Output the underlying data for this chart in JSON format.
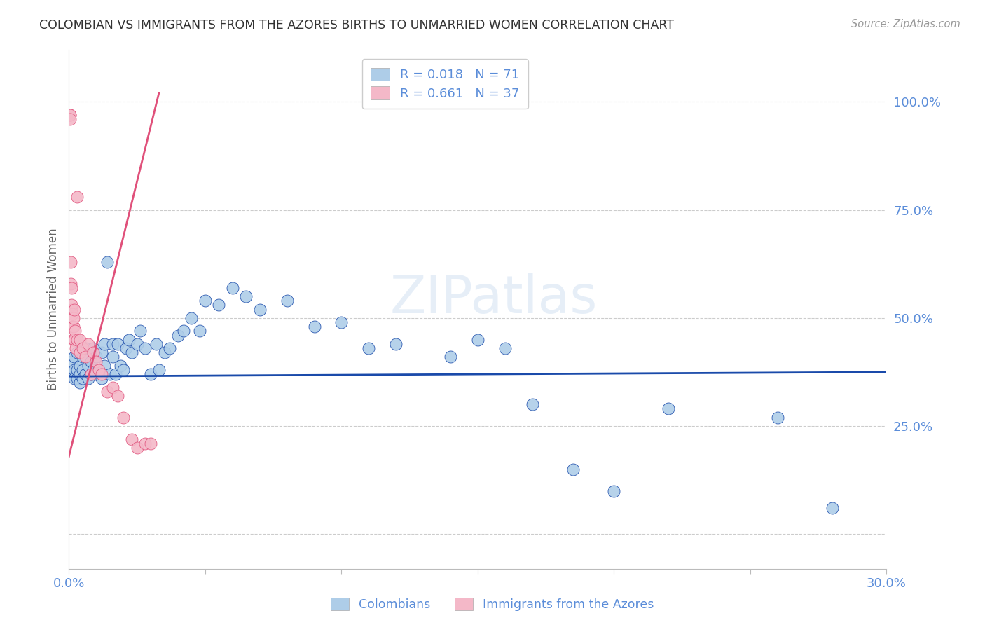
{
  "title": "COLOMBIAN VS IMMIGRANTS FROM THE AZORES BIRTHS TO UNMARRIED WOMEN CORRELATION CHART",
  "source": "Source: ZipAtlas.com",
  "ylabel": "Births to Unmarried Women",
  "xlim": [
    0.0,
    0.3
  ],
  "ylim": [
    -0.08,
    1.12
  ],
  "blue_color": "#aecde8",
  "pink_color": "#f4b8c8",
  "blue_line_color": "#1a4aaa",
  "pink_line_color": "#e0507a",
  "axis_label_color": "#5b8dd9",
  "colombians_x": [
    0.001,
    0.001,
    0.002,
    0.002,
    0.002,
    0.003,
    0.003,
    0.003,
    0.004,
    0.004,
    0.004,
    0.005,
    0.005,
    0.005,
    0.006,
    0.006,
    0.007,
    0.007,
    0.008,
    0.008,
    0.009,
    0.009,
    0.01,
    0.01,
    0.011,
    0.012,
    0.012,
    0.013,
    0.013,
    0.014,
    0.015,
    0.016,
    0.016,
    0.017,
    0.018,
    0.019,
    0.02,
    0.021,
    0.022,
    0.023,
    0.025,
    0.026,
    0.028,
    0.03,
    0.032,
    0.033,
    0.035,
    0.037,
    0.04,
    0.042,
    0.045,
    0.048,
    0.05,
    0.055,
    0.06,
    0.065,
    0.07,
    0.08,
    0.09,
    0.1,
    0.11,
    0.12,
    0.14,
    0.15,
    0.16,
    0.17,
    0.185,
    0.2,
    0.22,
    0.26,
    0.28
  ],
  "colombians_y": [
    0.37,
    0.4,
    0.38,
    0.36,
    0.41,
    0.36,
    0.38,
    0.42,
    0.35,
    0.37,
    0.39,
    0.38,
    0.41,
    0.36,
    0.37,
    0.43,
    0.39,
    0.36,
    0.4,
    0.37,
    0.38,
    0.43,
    0.37,
    0.41,
    0.38,
    0.42,
    0.36,
    0.39,
    0.44,
    0.63,
    0.37,
    0.44,
    0.41,
    0.37,
    0.44,
    0.39,
    0.38,
    0.43,
    0.45,
    0.42,
    0.44,
    0.47,
    0.43,
    0.37,
    0.44,
    0.38,
    0.42,
    0.43,
    0.46,
    0.47,
    0.5,
    0.47,
    0.54,
    0.53,
    0.57,
    0.55,
    0.52,
    0.54,
    0.48,
    0.49,
    0.43,
    0.44,
    0.41,
    0.45,
    0.43,
    0.3,
    0.15,
    0.1,
    0.29,
    0.27,
    0.06
  ],
  "azores_x": [
    0.0003,
    0.0004,
    0.0005,
    0.0006,
    0.0007,
    0.0008,
    0.001,
    0.001,
    0.0012,
    0.0013,
    0.0015,
    0.0016,
    0.0018,
    0.002,
    0.002,
    0.0022,
    0.0025,
    0.003,
    0.003,
    0.004,
    0.004,
    0.005,
    0.006,
    0.007,
    0.008,
    0.009,
    0.01,
    0.011,
    0.012,
    0.014,
    0.016,
    0.018,
    0.02,
    0.023,
    0.025,
    0.028,
    0.03
  ],
  "azores_y": [
    0.97,
    0.97,
    0.96,
    0.63,
    0.58,
    0.52,
    0.53,
    0.57,
    0.48,
    0.51,
    0.45,
    0.48,
    0.5,
    0.52,
    0.45,
    0.47,
    0.43,
    0.45,
    0.78,
    0.45,
    0.42,
    0.43,
    0.41,
    0.44,
    0.37,
    0.42,
    0.4,
    0.38,
    0.37,
    0.33,
    0.34,
    0.32,
    0.27,
    0.22,
    0.2,
    0.21,
    0.21
  ],
  "blue_trendline_x": [
    0.0,
    0.3
  ],
  "blue_trendline_y": [
    0.365,
    0.375
  ],
  "pink_trendline_x": [
    0.0,
    0.033
  ],
  "pink_trendline_y": [
    0.18,
    1.02
  ]
}
